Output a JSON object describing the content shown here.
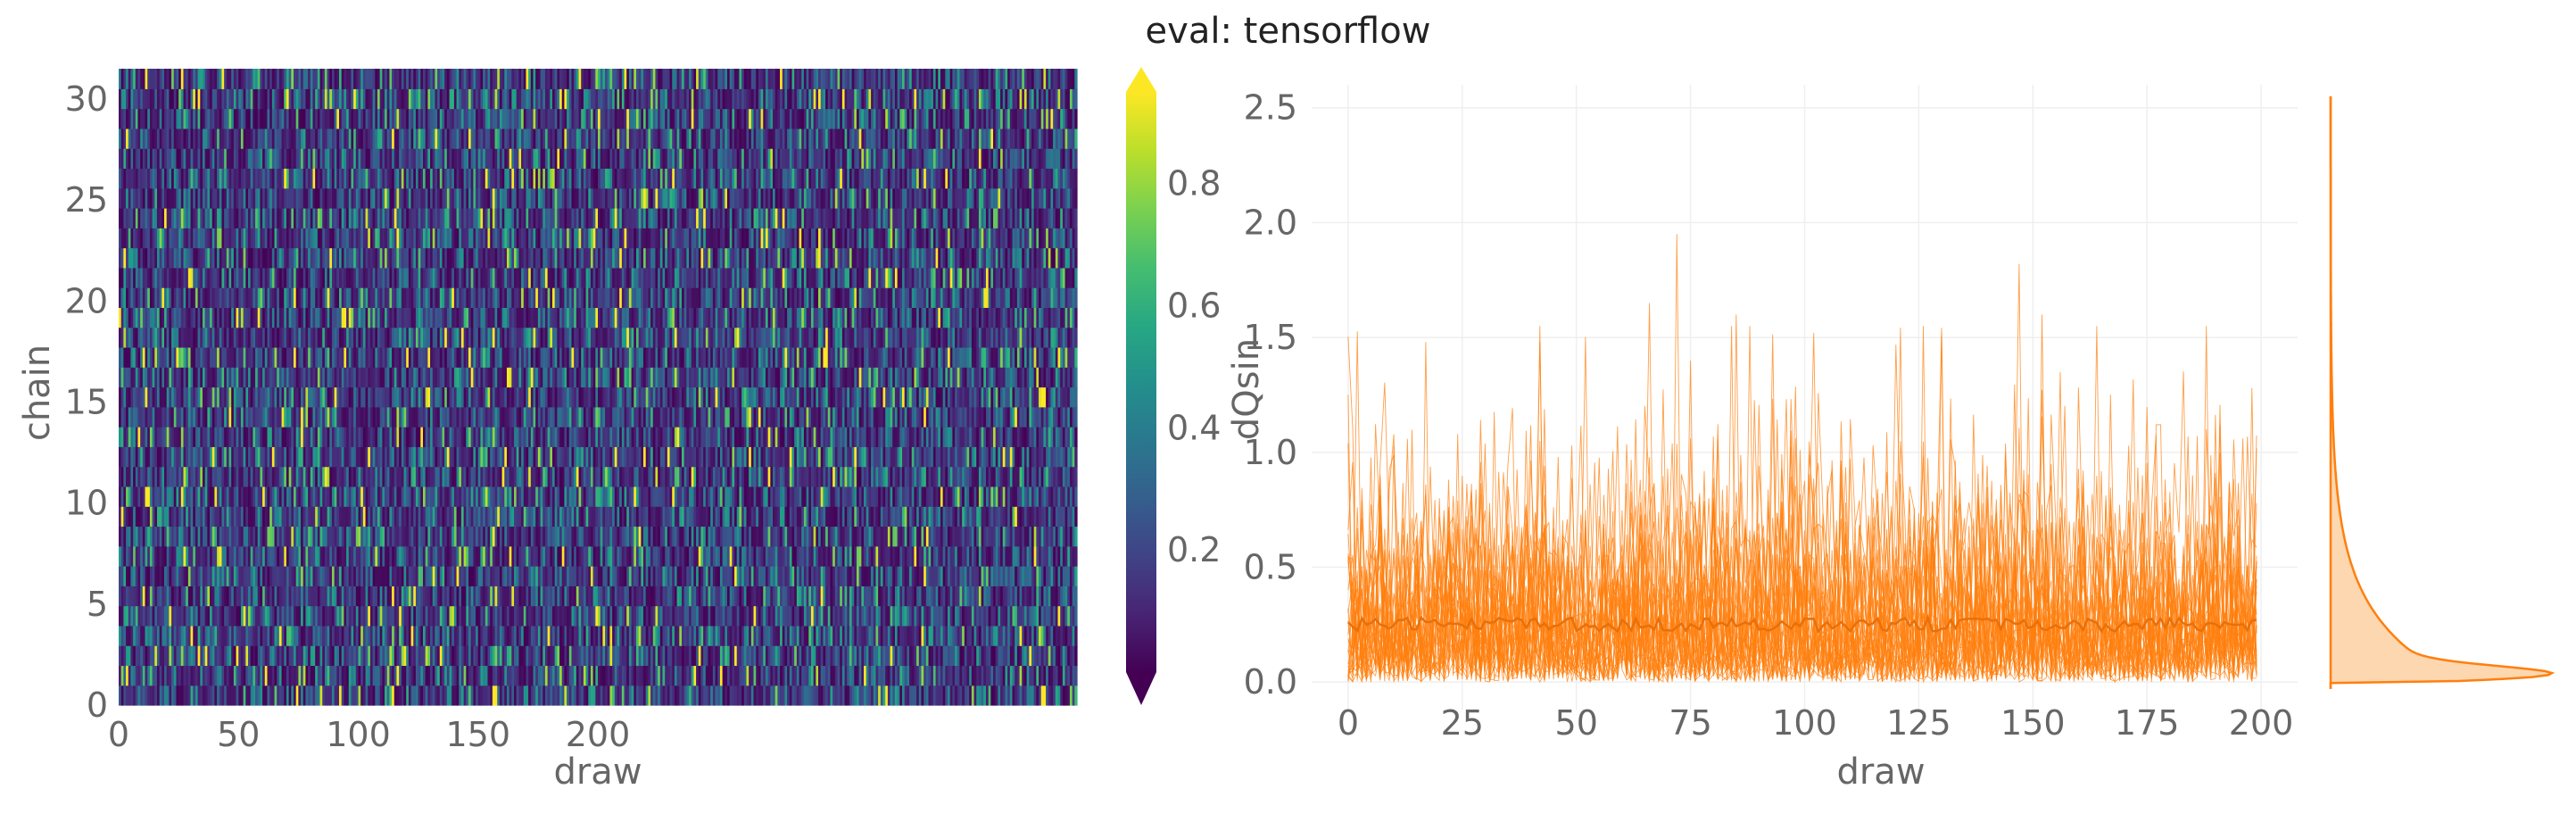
{
  "figure": {
    "title": "eval: tensorflow"
  },
  "chart_data": [
    {
      "type": "heatmap",
      "xlabel": "draw",
      "ylabel": "chain",
      "x_ticks": [
        0,
        50,
        100,
        150,
        200
      ],
      "y_ticks": [
        0,
        5,
        10,
        15,
        20,
        25,
        30
      ],
      "xlim": [
        0,
        400
      ],
      "ylim": [
        0,
        31.5
      ],
      "n_chains": 32,
      "n_draws": 400,
      "colormap": "viridis",
      "colorbar": {
        "label": "dQsin",
        "ticks": [
          0.2,
          0.4,
          0.6,
          0.8
        ],
        "range": [
          0.0,
          0.95
        ],
        "extend": "both"
      },
      "value_distribution": {
        "mean": 0.25,
        "shape": "right-skewed",
        "max": 0.95
      }
    },
    {
      "type": "line",
      "xlabel": "draw",
      "ylabel": "",
      "x_ticks": [
        0,
        25,
        50,
        75,
        100,
        125,
        150,
        175,
        200
      ],
      "y_ticks": [
        0.0,
        0.5,
        1.0,
        1.5,
        2.0,
        2.5
      ],
      "xlim": [
        -8,
        208
      ],
      "ylim": [
        -0.12,
        2.6
      ],
      "n_series": 32,
      "color": "#ff7f0e",
      "mean_level": 0.25,
      "notable_peaks": [
        {
          "x": 72,
          "y": 1.95
        },
        {
          "x": 66,
          "y": 1.65
        },
        {
          "x": 147,
          "y": 1.82
        },
        {
          "x": 152,
          "y": 1.6
        },
        {
          "x": 17,
          "y": 1.48
        },
        {
          "x": 42,
          "y": 1.48
        },
        {
          "x": 85,
          "y": 1.6
        },
        {
          "x": 102,
          "y": 1.52
        },
        {
          "x": 130,
          "y": 1.52
        },
        {
          "x": 0,
          "y": 1.25
        },
        {
          "x": 198,
          "y": 1.28
        }
      ],
      "grid": true,
      "marginal_density": {
        "color": "#ff7f0e",
        "fill": "#fdd0a2",
        "peak_y": 0.03,
        "range": [
          0.0,
          2.55
        ]
      }
    }
  ]
}
